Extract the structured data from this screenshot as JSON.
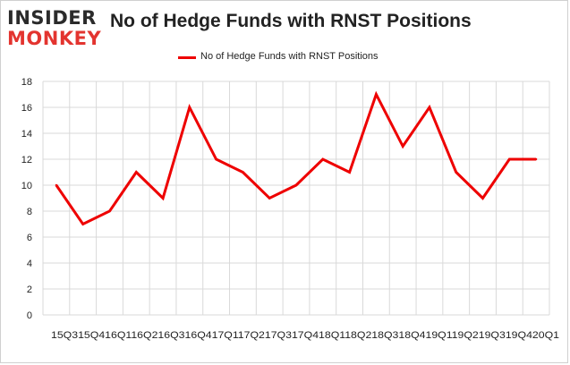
{
  "brand": {
    "line1": "INSIDER",
    "line2": "MONKEY"
  },
  "chart_data": {
    "type": "line",
    "title": "No of Hedge Funds with RNST Positions",
    "xlabel": "",
    "ylabel": "",
    "categories": [
      "15Q3",
      "15Q4",
      "16Q1",
      "16Q2",
      "16Q3",
      "16Q4",
      "17Q1",
      "17Q2",
      "17Q3",
      "17Q4",
      "18Q1",
      "18Q2",
      "18Q3",
      "18Q4",
      "19Q1",
      "19Q2",
      "19Q3",
      "19Q4",
      "20Q1"
    ],
    "x_tick_text": "15Q315Q416Q116Q216Q316Q417Q117Q217Q317Q418Q118Q218Q318Q419Q119Q219Q319Q420Q1",
    "series": [
      {
        "name": "No of Hedge Funds with RNST  Positions",
        "color": "#ee0000",
        "values": [
          10,
          7,
          8,
          11,
          9,
          16,
          12,
          11,
          9,
          10,
          12,
          11,
          17,
          13,
          16,
          11,
          9,
          12,
          12
        ]
      }
    ],
    "ylim": [
      0,
      18
    ],
    "yticks": [
      0,
      2,
      4,
      6,
      8,
      10,
      12,
      14,
      16,
      18
    ],
    "grid": true,
    "legend_position": "top-center"
  }
}
